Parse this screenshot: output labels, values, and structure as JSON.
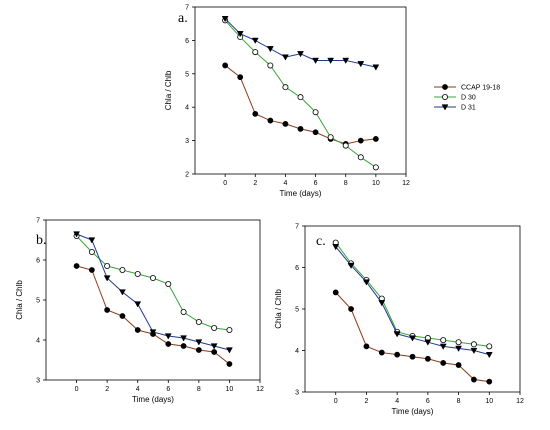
{
  "figure": {
    "legend": [
      "CCAP 19-18",
      "D 30",
      "D 31"
    ]
  },
  "colors": {
    "CCAP 19-18": "#8b3a1a",
    "D 30": "#3aa53a",
    "D 31": "#1f3a8f"
  },
  "chart_data": [
    {
      "type": "line",
      "panel": "a.",
      "xlabel": "Time (days)",
      "ylabel": "Chla / Chlb",
      "xlim": [
        -2,
        12
      ],
      "ylim": [
        2,
        7
      ],
      "xticks": [
        0,
        2,
        4,
        6,
        8,
        10,
        12
      ],
      "yticks": [
        2,
        3,
        4,
        5,
        6,
        7
      ],
      "legend_position": "right",
      "series": [
        {
          "name": "CCAP 19-18",
          "marker": "filled-circle",
          "x": [
            0,
            1,
            2,
            3,
            4,
            5,
            6,
            7,
            8,
            9,
            10
          ],
          "y": [
            5.25,
            4.9,
            3.8,
            3.6,
            3.5,
            3.35,
            3.25,
            3.05,
            2.9,
            3.0,
            3.05
          ]
        },
        {
          "name": "D 30",
          "marker": "open-circle",
          "x": [
            0,
            1,
            2,
            3,
            4,
            5,
            6,
            7,
            8,
            9,
            10
          ],
          "y": [
            6.6,
            6.1,
            5.65,
            5.25,
            4.6,
            4.3,
            3.85,
            3.1,
            2.85,
            2.5,
            2.2
          ]
        },
        {
          "name": "D 31",
          "marker": "down-triangle",
          "x": [
            0,
            1,
            2,
            3,
            4,
            5,
            6,
            7,
            8,
            9,
            10
          ],
          "y": [
            6.65,
            6.2,
            6.0,
            5.75,
            5.5,
            5.6,
            5.4,
            5.4,
            5.4,
            5.3,
            5.2
          ]
        }
      ]
    },
    {
      "type": "line",
      "panel": "b.",
      "xlabel": "Time (days)",
      "ylabel": "Chla / Chlb",
      "xlim": [
        -2,
        12
      ],
      "ylim": [
        3,
        7
      ],
      "xticks": [
        0,
        2,
        4,
        6,
        8,
        10,
        12
      ],
      "yticks": [
        3,
        4,
        5,
        6,
        7
      ],
      "series": [
        {
          "name": "CCAP 19-18",
          "marker": "filled-circle",
          "x": [
            0,
            1,
            2,
            3,
            4,
            5,
            6,
            7,
            8,
            9,
            10
          ],
          "y": [
            5.85,
            5.75,
            4.75,
            4.6,
            4.25,
            4.15,
            3.9,
            3.85,
            3.75,
            3.7,
            3.4
          ]
        },
        {
          "name": "D 30",
          "marker": "open-circle",
          "x": [
            0,
            1,
            2,
            3,
            4,
            5,
            6,
            7,
            8,
            9,
            10
          ],
          "y": [
            6.6,
            6.2,
            5.85,
            5.75,
            5.65,
            5.55,
            5.4,
            4.7,
            4.45,
            4.3,
            4.25
          ]
        },
        {
          "name": "D 31",
          "marker": "down-triangle",
          "x": [
            0,
            1,
            2,
            3,
            4,
            5,
            6,
            7,
            8,
            9,
            10
          ],
          "y": [
            6.65,
            6.5,
            5.55,
            5.2,
            4.9,
            4.2,
            4.1,
            4.05,
            3.95,
            3.85,
            3.75
          ]
        }
      ]
    },
    {
      "type": "line",
      "panel": "c.",
      "xlabel": "Time (days)",
      "ylabel": "Chla / Chlb",
      "xlim": [
        -2,
        12
      ],
      "ylim": [
        3,
        7
      ],
      "xticks": [
        0,
        2,
        4,
        6,
        8,
        10,
        12
      ],
      "yticks": [
        3,
        4,
        5,
        6,
        7
      ],
      "series": [
        {
          "name": "CCAP 19-18",
          "marker": "filled-circle",
          "x": [
            0,
            1,
            2,
            3,
            4,
            5,
            6,
            7,
            8,
            9,
            10
          ],
          "y": [
            5.4,
            5.0,
            4.1,
            3.95,
            3.9,
            3.85,
            3.8,
            3.7,
            3.65,
            3.3,
            3.25
          ]
        },
        {
          "name": "D 30",
          "marker": "open-circle",
          "x": [
            0,
            1,
            2,
            3,
            4,
            5,
            6,
            7,
            8,
            9,
            10
          ],
          "y": [
            6.6,
            6.1,
            5.7,
            5.25,
            4.45,
            4.35,
            4.3,
            4.25,
            4.2,
            4.15,
            4.1
          ]
        },
        {
          "name": "D 31",
          "marker": "down-triangle",
          "x": [
            0,
            1,
            2,
            3,
            4,
            5,
            6,
            7,
            8,
            9,
            10
          ],
          "y": [
            6.5,
            6.05,
            5.65,
            5.15,
            4.4,
            4.3,
            4.2,
            4.1,
            4.05,
            4.0,
            3.9
          ]
        }
      ]
    }
  ]
}
